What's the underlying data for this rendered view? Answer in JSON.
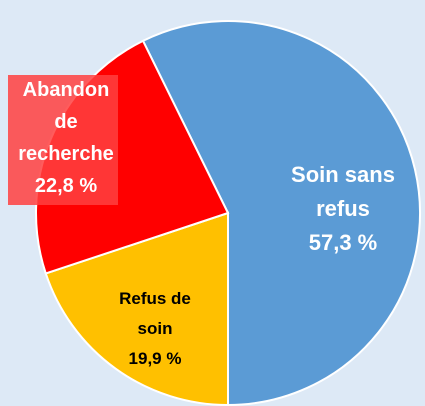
{
  "chart_data": {
    "type": "pie",
    "categories": [
      "Soin sans refus",
      "Refus de soin",
      "Abandon de recherche"
    ],
    "values": [
      57.3,
      19.9,
      22.8
    ],
    "value_labels": [
      "57,3 %",
      "19,9 %",
      "22,8 %"
    ],
    "colors": [
      "#5b9bd5",
      "#ffc000",
      "#ff0000"
    ]
  }
}
